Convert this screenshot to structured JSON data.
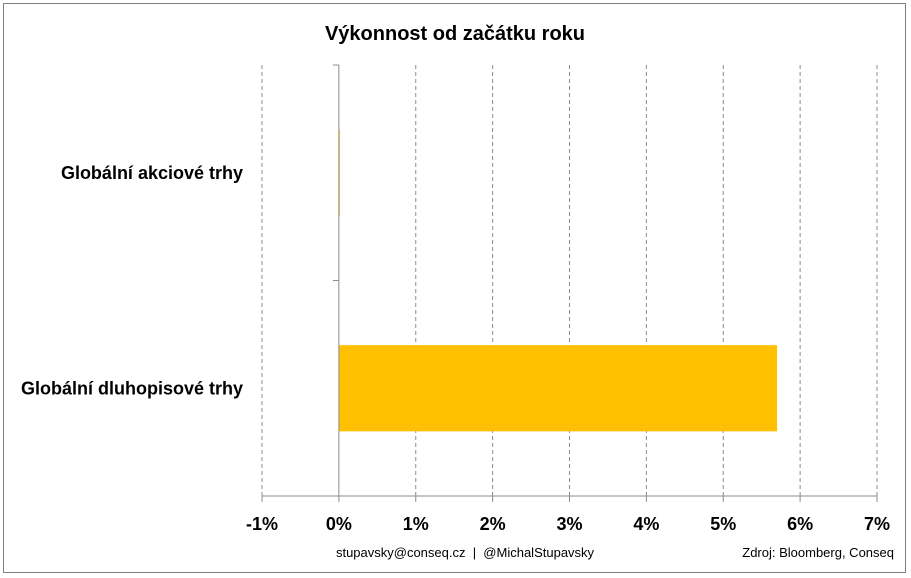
{
  "chart_data": {
    "type": "bar",
    "orientation": "horizontal",
    "title": "Výkonnost od začátku roku",
    "categories": [
      "Globální akciové trhy",
      "Globální dluhopisové trhy"
    ],
    "values": [
      0.0,
      5.7
    ],
    "x_ticks": [
      "-1%",
      "0%",
      "1%",
      "2%",
      "3%",
      "4%",
      "5%",
      "6%",
      "7%"
    ],
    "xlim": [
      -1,
      7
    ],
    "unit": "%",
    "grid": "vertical dashed",
    "legend": "none",
    "bar_color": "#FFC000"
  },
  "footer": {
    "contact": "stupavsky@conseq.cz  |  @MichalStupavsky",
    "source": "Zdroj: Bloomberg, Conseq"
  }
}
